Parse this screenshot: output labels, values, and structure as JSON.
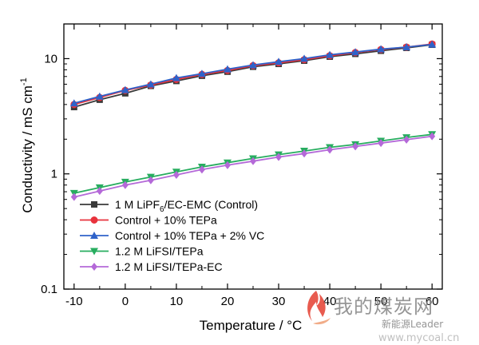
{
  "chart_data": {
    "type": "line",
    "xlabel": "Temperature / °C",
    "ylabel": "Conductivity / mS cm",
    "ylabel_superscript": "-1",
    "yscale": "log",
    "xlim": [
      -12,
      62
    ],
    "ylim": [
      0.1,
      20
    ],
    "xticks": [
      -10,
      0,
      10,
      20,
      30,
      40,
      50,
      60
    ],
    "yticks": [
      0.1,
      1,
      10
    ],
    "ytick_labels": [
      "0.1",
      "1",
      "10"
    ],
    "grid": false,
    "legend_position": "lower-left inside",
    "x": [
      -10,
      -5,
      0,
      5,
      10,
      15,
      20,
      25,
      30,
      35,
      40,
      45,
      50,
      55,
      60
    ],
    "series": [
      {
        "name": "1 M LiPF6/EC-EMC (Control)",
        "legend_parts": [
          "1 M LiPF",
          "6",
          "/EC-EMC (Control)"
        ],
        "color": "#3a3a3a",
        "marker": "square",
        "values": [
          3.8,
          4.4,
          5.0,
          5.8,
          6.4,
          7.1,
          7.7,
          8.5,
          9.0,
          9.6,
          10.4,
          11.0,
          11.7,
          12.4,
          13.2
        ]
      },
      {
        "name": "Control + 10% TEPa",
        "legend_parts": [
          "Control + 10% TEPa"
        ],
        "color": "#e8323c",
        "marker": "circle",
        "values": [
          4.0,
          4.6,
          5.3,
          5.9,
          6.6,
          7.3,
          7.9,
          8.7,
          9.2,
          9.8,
          10.6,
          11.3,
          12.0,
          12.6,
          13.4
        ]
      },
      {
        "name": "Control + 10% TEPa + 2% VC",
        "legend_parts": [
          "Control + 10% TEPa + 2% VC"
        ],
        "color": "#2f62c9",
        "marker": "triangle-up",
        "values": [
          4.1,
          4.7,
          5.35,
          6.0,
          6.8,
          7.4,
          8.1,
          8.8,
          9.4,
          10.0,
          10.8,
          11.4,
          12.1,
          12.6,
          13.3
        ]
      },
      {
        "name": "1.2 M LiFSI/TEPa",
        "legend_parts": [
          "1.2 M LiFSI/TEPa"
        ],
        "color": "#27ad5f",
        "marker": "triangle-down",
        "values": [
          0.68,
          0.76,
          0.85,
          0.94,
          1.04,
          1.15,
          1.25,
          1.36,
          1.47,
          1.58,
          1.7,
          1.8,
          1.93,
          2.07,
          2.2
        ]
      },
      {
        "name": "1.2 M LiFSI/TEPa-EC",
        "legend_parts": [
          "1.2 M LiFSI/TEPa-EC"
        ],
        "color": "#b469d8",
        "marker": "diamond",
        "values": [
          0.63,
          0.71,
          0.8,
          0.88,
          0.98,
          1.09,
          1.19,
          1.29,
          1.4,
          1.5,
          1.62,
          1.73,
          1.85,
          1.98,
          2.12
        ]
      }
    ]
  },
  "watermark": {
    "cn": "我的煤炭网",
    "sub": "新能源Leader",
    "url": "www.mycoal.cn"
  }
}
